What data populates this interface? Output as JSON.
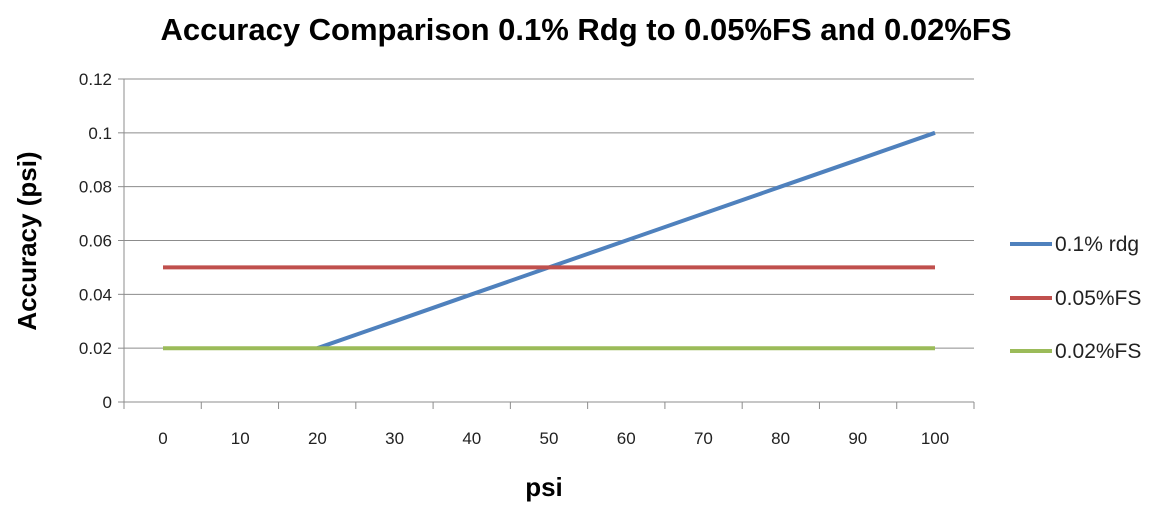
{
  "chart_data": {
    "type": "line",
    "title": "Accuracy Comparison 0.1% Rdg to 0.05%FS and 0.02%FS",
    "xlabel": "psi",
    "ylabel": "Accuracy (psi)",
    "x": [
      0,
      10,
      20,
      30,
      40,
      50,
      60,
      70,
      80,
      90,
      100
    ],
    "x_tick_labels": [
      "0",
      "10",
      "20",
      "30",
      "40",
      "50",
      "60",
      "70",
      "80",
      "90",
      "100"
    ],
    "y_ticks": [
      0,
      0.02,
      0.04,
      0.06,
      0.08,
      0.1,
      0.12
    ],
    "y_tick_labels": [
      "0",
      "0.02",
      "0.04",
      "0.06",
      "0.08",
      "0.1",
      "0.12"
    ],
    "ylim": [
      0,
      0.12
    ],
    "grid": "horizontal",
    "legend_position": "right",
    "series": [
      {
        "name": "0.1% rdg",
        "color": "#4F81BD",
        "x": [
          20,
          30,
          40,
          50,
          60,
          70,
          80,
          90,
          100
        ],
        "values": [
          0.02,
          0.03,
          0.04,
          0.05,
          0.06,
          0.07,
          0.08,
          0.09,
          0.1
        ]
      },
      {
        "name": "0.05%FS",
        "color": "#C0504D",
        "x": [
          0,
          10,
          20,
          30,
          40,
          50,
          60,
          70,
          80,
          90,
          100
        ],
        "values": [
          0.05,
          0.05,
          0.05,
          0.05,
          0.05,
          0.05,
          0.05,
          0.05,
          0.05,
          0.05,
          0.05
        ]
      },
      {
        "name": "0.02%FS",
        "color": "#9BBB59",
        "x": [
          0,
          10,
          20,
          30,
          40,
          50,
          60,
          70,
          80,
          90,
          100
        ],
        "values": [
          0.02,
          0.02,
          0.02,
          0.02,
          0.02,
          0.02,
          0.02,
          0.02,
          0.02,
          0.02,
          0.02
        ]
      }
    ]
  }
}
